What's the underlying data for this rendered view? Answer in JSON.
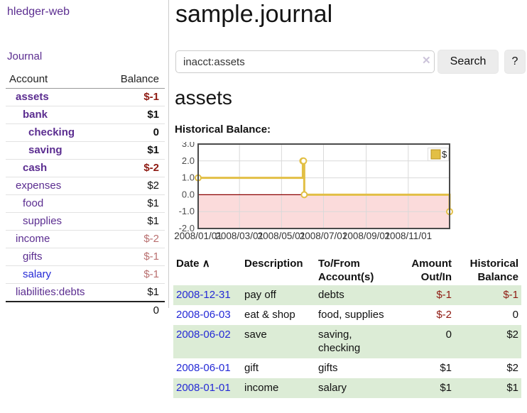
{
  "sidebar": {
    "app_title": "hledger-web",
    "journal_link": "Journal",
    "accounts_table": {
      "headers": {
        "account": "Account",
        "balance": "Balance"
      },
      "rows": [
        {
          "name": "assets",
          "balance": "$-1"
        },
        {
          "name": "bank",
          "balance": "$1"
        },
        {
          "name": "checking",
          "balance": "0"
        },
        {
          "name": "saving",
          "balance": "$1"
        },
        {
          "name": "cash",
          "balance": "$-2"
        },
        {
          "name": "expenses",
          "balance": "$2"
        },
        {
          "name": "food",
          "balance": "$1"
        },
        {
          "name": "supplies",
          "balance": "$1"
        },
        {
          "name": "income",
          "balance": "$-2"
        },
        {
          "name": "gifts",
          "balance": "$-1"
        },
        {
          "name": "salary",
          "balance": "$-1"
        },
        {
          "name": "liabilities:debts",
          "balance": "$1"
        }
      ],
      "total": "0"
    }
  },
  "header": {
    "title": "sample.journal"
  },
  "search": {
    "value": "inacct:assets",
    "clear_icon": "✕",
    "search_label": "Search",
    "help_label": "?"
  },
  "account_page": {
    "heading": "assets",
    "chart_label": "Historical Balance:"
  },
  "chart_data": {
    "type": "line",
    "step": true,
    "title": "Historical Balance",
    "legend": {
      "label": "$",
      "position": "top-right"
    },
    "ylim": [
      -2,
      3
    ],
    "yticks": [
      3,
      2,
      1,
      0,
      -1,
      -2
    ],
    "ytick_labels": [
      "3.0",
      "2.0",
      "1.0",
      "0.0",
      "-1.0",
      "-2.0"
    ],
    "xrange_days": [
      0,
      365
    ],
    "xticks": [
      {
        "day": 0,
        "label": "2008/01/01"
      },
      {
        "day": 60,
        "label": "2008/03/01"
      },
      {
        "day": 121,
        "label": "2008/05/01"
      },
      {
        "day": 182,
        "label": "2008/07/01"
      },
      {
        "day": 244,
        "label": "2008/09/01"
      },
      {
        "day": 305,
        "label": "2008/11/01"
      }
    ],
    "series": [
      {
        "name": "$",
        "points": [
          {
            "date": "2008-01-01",
            "day": 0,
            "value": 1
          },
          {
            "date": "2008-06-01",
            "day": 152,
            "value": 2
          },
          {
            "date": "2008-06-02",
            "day": 153,
            "value": 2
          },
          {
            "date": "2008-06-03",
            "day": 154,
            "value": 0
          },
          {
            "date": "2008-12-31",
            "day": 365,
            "value": -1
          }
        ]
      }
    ],
    "grid": true,
    "colors": {
      "line": "#e2bf45",
      "marker_fill": "#ffffff",
      "legend_border": "#b8921e",
      "negative_fill": "#fbdbdb",
      "zero_line": "#8b0000",
      "grid": "#d9d9d9",
      "border": "#4a4a4a",
      "axis_text": "#4d4d4d"
    }
  },
  "register_table": {
    "headers": {
      "date": "Date",
      "sort_icon": "∧",
      "description": "Description",
      "to_from": [
        "To/From",
        "Account(s)"
      ],
      "amount": [
        "Amount",
        "Out/In"
      ],
      "historical": [
        "Historical",
        "Balance"
      ]
    },
    "rows": [
      {
        "date": "2008-12-31",
        "description": "pay off",
        "accounts": "debts",
        "amount": "$-1",
        "balance": "$-1"
      },
      {
        "date": "2008-06-03",
        "description": "eat & shop",
        "accounts": "food, supplies",
        "amount": "$-2",
        "balance": "0"
      },
      {
        "date": "2008-06-02",
        "description": "save",
        "accounts": "saving, checking",
        "amount": "0",
        "balance": "$2"
      },
      {
        "date": "2008-06-01",
        "description": "gift",
        "accounts": "gifts",
        "amount": "$1",
        "balance": "$2"
      },
      {
        "date": "2008-01-01",
        "description": "income",
        "accounts": "salary",
        "amount": "$1",
        "balance": "$1"
      }
    ]
  }
}
